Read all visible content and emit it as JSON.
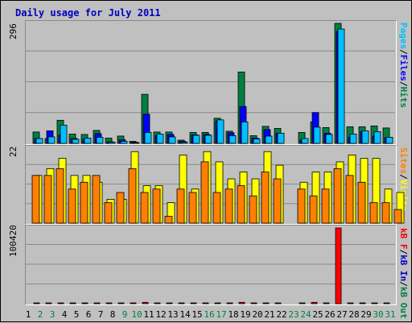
{
  "title": "Daily usage for July 2011",
  "colors": {
    "hits": "#008040",
    "files": "#0000FF",
    "pages": "#00C0FF",
    "visits": "#FFFF00",
    "sites": "#FF8000",
    "kb_in": "#0000C0",
    "kb_out": "#008040",
    "kb_f": "#FF0000",
    "weekend": "#008040",
    "weekday": "#000000"
  },
  "chart_data": [
    {
      "type": "bar",
      "title": "Hits / Files / Pages",
      "ymax_label": "296",
      "legend": [
        "Pages",
        "Files",
        "Hits"
      ],
      "ylim": [
        0,
        296
      ],
      "series": [
        {
          "name": "Hits",
          "values": [
            28,
            12,
            57,
            23,
            22,
            32,
            13,
            18,
            5,
            121,
            28,
            28,
            8,
            27,
            27,
            62,
            30,
            176,
            19,
            42,
            37,
            0,
            27,
            53,
            39,
            296,
            41,
            41,
            43,
            38,
            0
          ]
        },
        {
          "name": "Files",
          "values": [
            12,
            31,
            20,
            12,
            10,
            24,
            4,
            9,
            3,
            72,
            19,
            22,
            5,
            21,
            22,
            55,
            26,
            91,
            13,
            34,
            25,
            0,
            8,
            76,
            25,
            276,
            15,
            29,
            18,
            14,
            0
          ]
        },
        {
          "name": "Pages",
          "values": [
            12,
            16,
            45,
            10,
            13,
            15,
            3,
            5,
            1,
            27,
            23,
            16,
            3,
            20,
            20,
            58,
            19,
            53,
            11,
            18,
            25,
            0,
            12,
            40,
            22,
            282,
            23,
            31,
            29,
            15,
            0
          ]
        }
      ]
    },
    {
      "type": "bar",
      "title": "Visits / Sites",
      "ymax_label": "22",
      "legend": [
        "Sites",
        "Visits"
      ],
      "ylim": [
        0,
        22
      ],
      "series": [
        {
          "name": "Visits",
          "values": [
            14,
            16,
            19,
            14,
            14,
            12,
            7,
            7,
            21,
            11,
            11,
            6,
            20,
            10,
            21,
            18,
            13,
            15,
            13,
            21,
            17,
            0,
            12,
            15,
            15,
            18,
            20,
            19,
            19,
            10,
            9
          ]
        },
        {
          "name": "Sites",
          "values": [
            14,
            14,
            16,
            10,
            12,
            14,
            6,
            9,
            16,
            9,
            10,
            2,
            10,
            9,
            18,
            9,
            10,
            11,
            8,
            15,
            13,
            0,
            10,
            8,
            10,
            16,
            14,
            12,
            6,
            6,
            4
          ]
        }
      ]
    },
    {
      "type": "bar",
      "title": "kB F / kB In / kB Out",
      "ymax_label": "100420",
      "legend": [
        "kB F",
        "kB In",
        "kB Out"
      ],
      "ylim": [
        0,
        100420
      ],
      "series": [
        {
          "name": "kB F",
          "values": [
            900,
            900,
            900,
            900,
            900,
            900,
            900,
            900,
            900,
            1800,
            900,
            900,
            900,
            900,
            900,
            900,
            900,
            1800,
            900,
            900,
            900,
            0,
            900,
            1800,
            900,
            100420,
            900,
            900,
            900,
            900,
            0
          ]
        }
      ],
      "categories": [
        "1",
        "2",
        "3",
        "4",
        "5",
        "6",
        "7",
        "8",
        "9",
        "10",
        "11",
        "12",
        "13",
        "14",
        "15",
        "16",
        "17",
        "18",
        "19",
        "20",
        "21",
        "22",
        "23",
        "24",
        "25",
        "26",
        "27",
        "28",
        "29",
        "30",
        "31"
      ],
      "weekend_days": [
        2,
        3,
        9,
        10,
        16,
        17,
        23,
        24,
        30,
        31
      ]
    }
  ]
}
